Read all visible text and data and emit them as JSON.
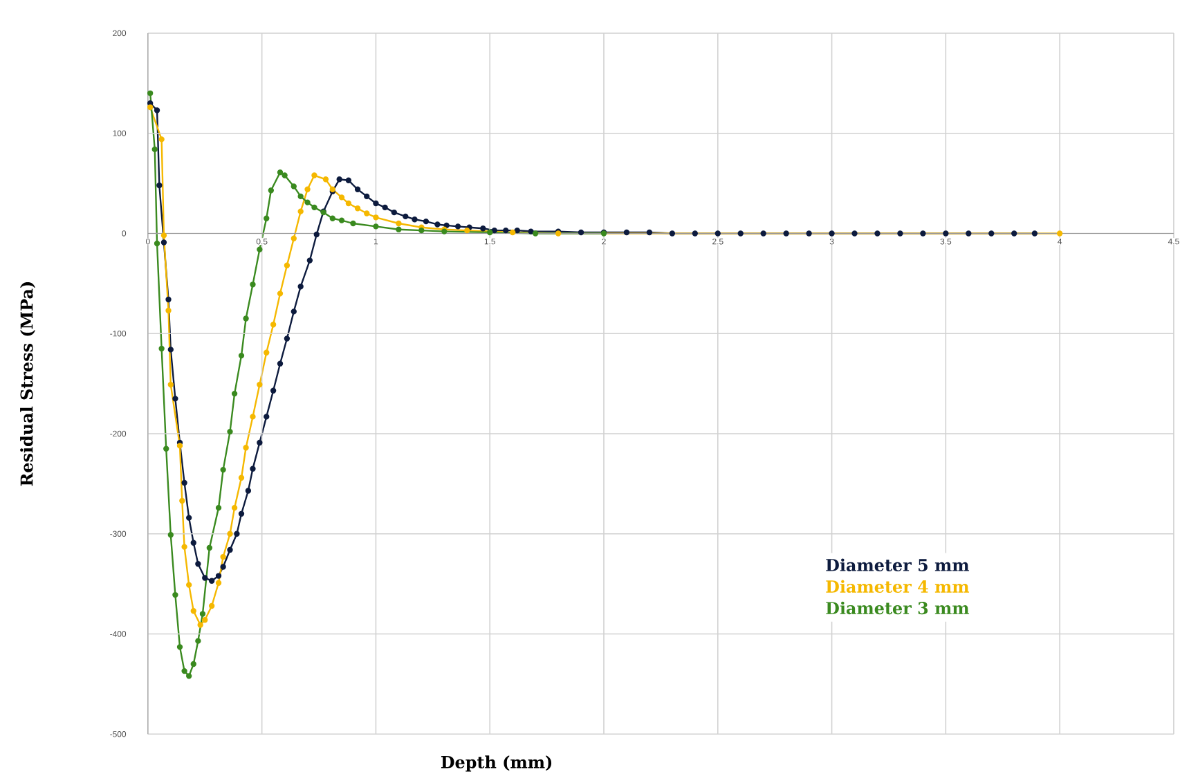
{
  "chart_data": {
    "type": "line",
    "xlabel": "Depth (mm)",
    "ylabel": "Residual Stress (MPa)",
    "xlim": [
      0,
      4.5
    ],
    "ylim": [
      -500,
      200
    ],
    "xticks": [
      0,
      0.5,
      1,
      1.5,
      2,
      2.5,
      3,
      3.5,
      4,
      4.5
    ],
    "yticks": [
      -500,
      -400,
      -300,
      -200,
      -100,
      0,
      100,
      200
    ],
    "grid": true,
    "legend": "bottom right",
    "marker": "circle",
    "line_style": "solid",
    "series": [
      {
        "name": "Diameter 5 mm",
        "color": "#0d1b3e",
        "x": [
          0.01,
          0.04,
          0.05,
          0.07,
          0.09,
          0.1,
          0.12,
          0.14,
          0.16,
          0.18,
          0.2,
          0.22,
          0.25,
          0.28,
          0.31,
          0.33,
          0.36,
          0.39,
          0.41,
          0.44,
          0.46,
          0.49,
          0.52,
          0.55,
          0.58,
          0.61,
          0.64,
          0.67,
          0.71,
          0.74,
          0.77,
          0.81,
          0.84,
          0.88,
          0.92,
          0.96,
          1.0,
          1.04,
          1.08,
          1.13,
          1.17,
          1.22,
          1.27,
          1.31,
          1.36,
          1.41,
          1.47,
          1.52,
          1.57,
          1.62,
          1.68,
          1.8,
          1.9,
          2.0,
          2.1,
          2.2,
          2.3,
          2.4,
          2.5,
          2.6,
          2.7,
          2.8,
          2.9,
          3.0,
          3.1,
          3.2,
          3.3,
          3.4,
          3.5,
          3.6,
          3.7,
          3.8,
          3.89
        ],
        "values": [
          130,
          123,
          48,
          -9,
          -66,
          -116,
          -165,
          -209,
          -249,
          -284,
          -309,
          -330,
          -344,
          -347,
          -342,
          -333,
          -316,
          -300,
          -280,
          -257,
          -235,
          -209,
          -183,
          -157,
          -130,
          -105,
          -78,
          -53,
          -27,
          -1,
          22,
          42,
          54,
          53,
          44,
          37,
          30,
          26,
          21,
          17,
          14,
          12,
          9,
          8,
          7,
          6,
          5,
          3,
          3,
          3,
          2,
          2,
          1,
          1,
          1,
          1,
          0,
          0,
          0,
          0,
          0,
          0,
          0,
          0,
          0,
          0,
          0,
          0,
          0,
          0,
          0,
          0,
          0
        ]
      },
      {
        "name": "Diameter 4 mm",
        "color": "#f5b800",
        "x": [
          0.01,
          0.06,
          0.07,
          0.09,
          0.1,
          0.14,
          0.15,
          0.16,
          0.18,
          0.2,
          0.23,
          0.25,
          0.28,
          0.31,
          0.33,
          0.36,
          0.38,
          0.41,
          0.43,
          0.46,
          0.49,
          0.52,
          0.55,
          0.58,
          0.61,
          0.64,
          0.67,
          0.7,
          0.73,
          0.78,
          0.81,
          0.85,
          0.88,
          0.92,
          0.96,
          1.0,
          1.1,
          1.2,
          1.3,
          1.4,
          1.6,
          1.8,
          4.0
        ],
        "values": [
          126,
          94,
          -2,
          -77,
          -151,
          -212,
          -267,
          -313,
          -351,
          -377,
          -391,
          -386,
          -372,
          -349,
          -323,
          -300,
          -274,
          -244,
          -214,
          -183,
          -151,
          -119,
          -91,
          -60,
          -32,
          -5,
          22,
          44,
          58,
          54,
          44,
          36,
          30,
          25,
          20,
          16,
          10,
          6,
          4,
          3,
          1,
          0,
          0
        ]
      },
      {
        "name": "Diameter 3 mm",
        "color": "#3a8a1f",
        "x": [
          0.01,
          0.03,
          0.04,
          0.06,
          0.08,
          0.1,
          0.12,
          0.14,
          0.16,
          0.18,
          0.2,
          0.22,
          0.24,
          0.27,
          0.31,
          0.33,
          0.36,
          0.38,
          0.41,
          0.43,
          0.46,
          0.49,
          0.52,
          0.54,
          0.58,
          0.6,
          0.64,
          0.67,
          0.7,
          0.73,
          0.77,
          0.81,
          0.85,
          0.9,
          1.0,
          1.1,
          1.2,
          1.3,
          1.5,
          1.7,
          2.0
        ],
        "values": [
          140,
          84,
          -10,
          -115,
          -215,
          -301,
          -361,
          -413,
          -437,
          -442,
          -430,
          -407,
          -380,
          -314,
          -274,
          -236,
          -198,
          -160,
          -122,
          -85,
          -51,
          -16,
          15,
          43,
          61,
          58,
          47,
          37,
          31,
          26,
          21,
          15,
          13,
          10,
          7,
          4,
          3,
          2,
          1,
          0,
          0
        ]
      }
    ]
  }
}
